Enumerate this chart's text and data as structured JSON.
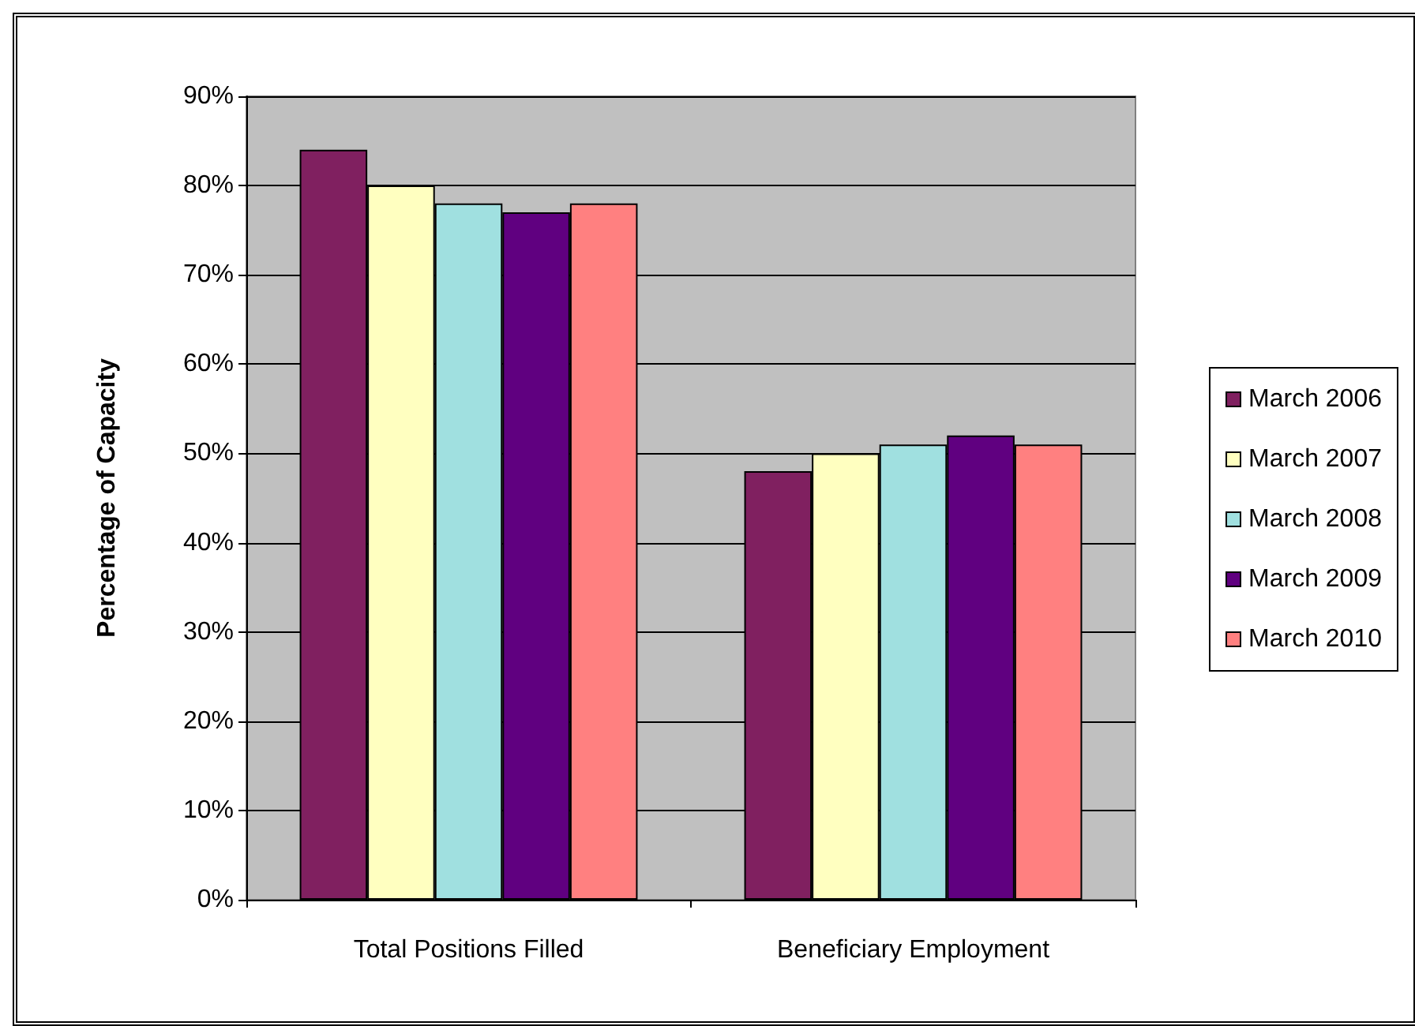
{
  "chart_data": {
    "type": "bar",
    "ylabel": "Percentage of Capacity",
    "categories": [
      "Total Positions Filled",
      "Beneficiary Employment"
    ],
    "series": [
      {
        "name": "March 2006",
        "color": "#802060",
        "values": [
          84,
          48
        ]
      },
      {
        "name": "March 2007",
        "color": "#ffffc0",
        "values": [
          80,
          50
        ]
      },
      {
        "name": "March 2008",
        "color": "#a0e0e0",
        "values": [
          78,
          51
        ]
      },
      {
        "name": "March 2009",
        "color": "#600080",
        "values": [
          77,
          52
        ]
      },
      {
        "name": "March 2010",
        "color": "#ff8080",
        "values": [
          78,
          51
        ]
      }
    ],
    "ylim": [
      0,
      90
    ],
    "yticks": [
      {
        "value": 0,
        "label": "0%"
      },
      {
        "value": 10,
        "label": "10%"
      },
      {
        "value": 20,
        "label": "20%"
      },
      {
        "value": 30,
        "label": "30%"
      },
      {
        "value": 40,
        "label": "40%"
      },
      {
        "value": 50,
        "label": "50%"
      },
      {
        "value": 60,
        "label": "60%"
      },
      {
        "value": 70,
        "label": "70%"
      },
      {
        "value": 80,
        "label": "80%"
      },
      {
        "value": 90,
        "label": "90%"
      }
    ],
    "grid": true,
    "legend": "right"
  }
}
